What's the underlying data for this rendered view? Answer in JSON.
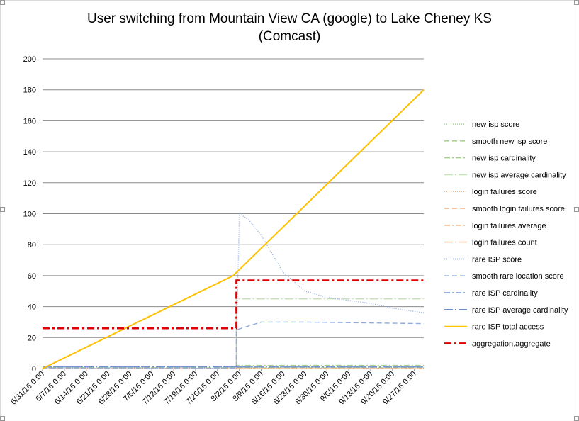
{
  "chart_data": {
    "type": "line",
    "title_line1": "User switching from Mountain View CA (google) to Lake Cheney KS",
    "title_line2": "(Comcast)",
    "xlabel": "",
    "ylabel": "",
    "ylim": [
      0,
      200
    ],
    "y_ticks": [
      "0",
      "20",
      "40",
      "60",
      "80",
      "100",
      "120",
      "140",
      "160",
      "180",
      "200"
    ],
    "x_range": [
      "2016-05-31",
      "2016-09-30"
    ],
    "x_tick_labels": [
      "5/31/16 0:00",
      "6/7/16 0:00",
      "6/14/16 0:00",
      "6/21/16 0:00",
      "6/28/16 0:00",
      "7/5/16 0:00",
      "7/12/16 0:00",
      "7/19/16 0:00",
      "7/26/16 0:00",
      "8/2/16 0:00",
      "8/9/16 0:00",
      "8/16/16 0:00",
      "8/23/16 0:00",
      "8/30/16 0:00",
      "9/6/16 0:00",
      "9/13/16 0:00",
      "9/20/16 0:00",
      "9/27/16 0:00"
    ],
    "grid": true,
    "legend_position": "right",
    "series": [
      {
        "name": "new isp score",
        "color": "#a9d18e",
        "dash": "1,2",
        "points": [
          [
            "2016-05-31",
            0.5
          ],
          [
            "2016-09-30",
            0.5
          ]
        ]
      },
      {
        "name": "smooth new isp score",
        "color": "#a9d18e",
        "dash": "7,4",
        "points": [
          [
            "2016-05-31",
            0.5
          ],
          [
            "2016-09-30",
            0.5
          ]
        ]
      },
      {
        "name": "new isp cardinality",
        "color": "#a9d18e",
        "dash": "8,3,2,3",
        "points": [
          [
            "2016-05-31",
            1
          ],
          [
            "2016-08-01",
            1
          ],
          [
            "2016-08-01",
            2
          ],
          [
            "2016-09-30",
            2
          ]
        ]
      },
      {
        "name": "new isp average cardinality",
        "color": "#c5e0b4",
        "dash": "12,3,2,3",
        "points": [
          [
            "2016-05-31",
            0
          ],
          [
            "2016-08-01",
            0
          ],
          [
            "2016-08-01",
            45
          ],
          [
            "2016-09-30",
            45
          ]
        ]
      },
      {
        "name": "login failures score",
        "color": "#f4b183",
        "dash": "1,2",
        "points": [
          [
            "2016-05-31",
            0
          ],
          [
            "2016-09-30",
            0
          ]
        ]
      },
      {
        "name": "smooth login failures score",
        "color": "#f4b183",
        "dash": "7,4",
        "points": [
          [
            "2016-05-31",
            0
          ],
          [
            "2016-09-30",
            0
          ]
        ]
      },
      {
        "name": "login failures average",
        "color": "#f4b183",
        "dash": "8,3,2,3",
        "points": [
          [
            "2016-05-31",
            0
          ],
          [
            "2016-09-30",
            0
          ]
        ]
      },
      {
        "name": "login failures count",
        "color": "#f8cbad",
        "dash": "12,3,2,3",
        "points": [
          [
            "2016-05-31",
            0
          ],
          [
            "2016-09-30",
            0
          ]
        ]
      },
      {
        "name": "rare ISP score",
        "color": "#8faadc",
        "dash": "1,2",
        "points": [
          [
            "2016-05-31",
            0
          ],
          [
            "2016-08-01",
            0
          ],
          [
            "2016-08-01",
            15
          ],
          [
            "2016-08-02",
            100
          ],
          [
            "2016-08-05",
            96
          ],
          [
            "2016-08-09",
            86
          ],
          [
            "2016-08-16",
            62
          ],
          [
            "2016-08-23",
            50
          ],
          [
            "2016-08-30",
            46
          ],
          [
            "2016-09-06",
            44
          ],
          [
            "2016-09-13",
            42
          ],
          [
            "2016-09-20",
            39
          ],
          [
            "2016-09-30",
            36
          ]
        ]
      },
      {
        "name": "smooth rare location score",
        "color": "#8faadc",
        "dash": "7,4",
        "points": [
          [
            "2016-05-31",
            0
          ],
          [
            "2016-08-01",
            0
          ],
          [
            "2016-08-01",
            25
          ],
          [
            "2016-08-09",
            30
          ],
          [
            "2016-08-23",
            30
          ],
          [
            "2016-09-30",
            29
          ]
        ]
      },
      {
        "name": "rare ISP cardinality",
        "color": "#6d8fcf",
        "dash": "8,3,2,3",
        "points": [
          [
            "2016-05-31",
            1
          ],
          [
            "2016-09-30",
            1
          ]
        ]
      },
      {
        "name": "rare ISP average cardinality",
        "color": "#6d8fcf",
        "dash": "12,3,2,3",
        "points": [
          [
            "2016-05-31",
            1
          ],
          [
            "2016-09-30",
            1
          ]
        ]
      },
      {
        "name": "rare ISP total access",
        "color": "#ffc000",
        "dash": "",
        "points": [
          [
            "2016-05-31",
            0
          ],
          [
            "2016-07-31",
            60
          ],
          [
            "2016-09-30",
            180
          ]
        ]
      },
      {
        "name": "aggregation.aggregate",
        "color": "#e00000",
        "dash": "10,4,3,4",
        "points": [
          [
            "2016-05-31",
            26
          ],
          [
            "2016-08-01",
            26
          ],
          [
            "2016-08-01",
            57
          ],
          [
            "2016-09-30",
            57
          ]
        ]
      }
    ]
  }
}
